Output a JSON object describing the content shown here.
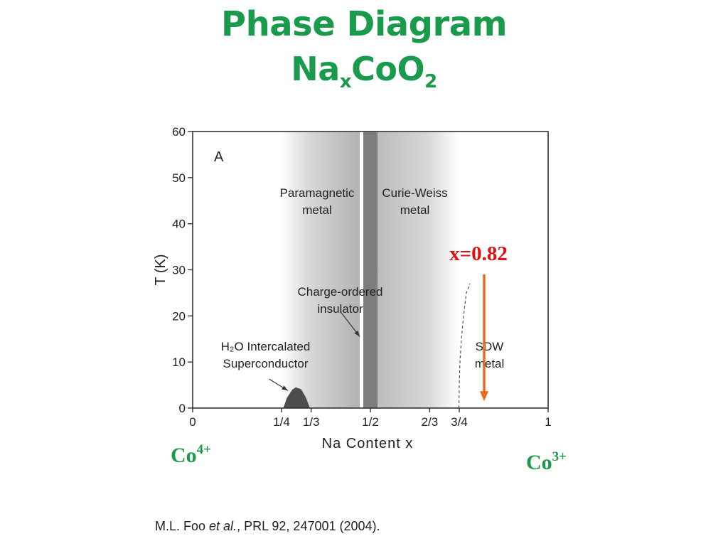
{
  "title": {
    "line1": "Phase Diagram",
    "formula": {
      "a": "Na",
      "sub_x": "x",
      "b": "CoO",
      "sub_2": "2"
    }
  },
  "co4": {
    "base": "Co",
    "sup": "4+"
  },
  "co3": {
    "base": "Co",
    "sup": "3+"
  },
  "citation": {
    "authors": "M.L. Foo ",
    "etal": "et al.",
    "rest": ", PRL 92, 247001 (2004)."
  },
  "chart_data": {
    "type": "area",
    "panel_label": "A",
    "xlabel": "Na Content  x",
    "ylabel": "T (K)",
    "xlim": [
      0,
      1
    ],
    "ylim": [
      0,
      60
    ],
    "x_ticks": [
      {
        "value": 0,
        "label": "0"
      },
      {
        "value": 0.25,
        "label": "1/4"
      },
      {
        "value": 0.3333,
        "label": "1/3"
      },
      {
        "value": 0.5,
        "label": "1/2"
      },
      {
        "value": 0.6667,
        "label": "2/3"
      },
      {
        "value": 0.75,
        "label": "3/4"
      },
      {
        "value": 1,
        "label": "1"
      }
    ],
    "y_ticks": [
      0,
      10,
      20,
      30,
      40,
      50,
      60
    ],
    "regions": [
      {
        "name": "Paramagnetic metal",
        "lines": [
          "Paramagnetic",
          "metal"
        ],
        "x_range": [
          0.25,
          0.47
        ]
      },
      {
        "name": "Charge-ordered insulator",
        "lines": [
          "Charge-ordered",
          "insulator"
        ],
        "x_range": [
          0.48,
          0.52
        ]
      },
      {
        "name": "Curie-Weiss metal",
        "lines": [
          "Curie-Weiss",
          "metal"
        ],
        "x_range": [
          0.52,
          0.75
        ]
      },
      {
        "name": "H2O Intercalated Superconductor",
        "lines": [
          "H₂O Intercalated",
          "Superconductor"
        ],
        "x_range": [
          0.255,
          0.33
        ],
        "tc_max": 4.5
      },
      {
        "name": "SDW metal",
        "lines": [
          "SDW",
          "metal"
        ],
        "x_range": [
          0.75,
          1.0
        ],
        "tc_max": 27
      }
    ],
    "superconductor_dome": [
      [
        0.255,
        0
      ],
      [
        0.265,
        2.2
      ],
      [
        0.28,
        4.0
      ],
      [
        0.29,
        4.5
      ],
      [
        0.305,
        4.1
      ],
      [
        0.318,
        2.4
      ],
      [
        0.33,
        0
      ]
    ],
    "sdw_boundary": [
      [
        0.749,
        0
      ],
      [
        0.75,
        5
      ],
      [
        0.752,
        10
      ],
      [
        0.756,
        15
      ],
      [
        0.762,
        20
      ],
      [
        0.77,
        25
      ],
      [
        0.78,
        27
      ]
    ],
    "marker": {
      "label": "x=0.82",
      "x": 0.82,
      "y_top": 29,
      "y_bottom": 1.5,
      "color": "#ee6a1a",
      "label_color": "#dd1111"
    }
  }
}
